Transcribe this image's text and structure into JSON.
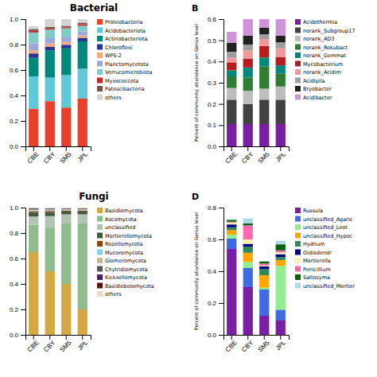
{
  "chart_data": [
    {
      "type": "bar",
      "stacked": true,
      "legend": "right",
      "title": "Bacterial",
      "categories": [
        "CBE",
        "CBY",
        "SM5",
        "JPL"
      ],
      "ylim": [
        0,
        1
      ],
      "yticks": [
        {
          "value": 0,
          "label": "0.0"
        },
        0.2,
        0.4,
        0.6,
        0.8,
        {
          "value": 1.0,
          "label": "1.0"
        }
      ],
      "series": [
        {
          "name": "Proteobacteria",
          "color": "#E8402A",
          "values": [
            0.295,
            0.355,
            0.305,
            0.375
          ]
        },
        {
          "name": "Acidobacteriota",
          "color": "#5ECAD8",
          "values": [
            0.255,
            0.185,
            0.255,
            0.235
          ]
        },
        {
          "name": "Actinobacteriota",
          "color": "#00897B",
          "values": [
            0.145,
            0.215,
            0.21,
            0.215
          ]
        },
        {
          "name": "Chloroflexi",
          "color": "#283593",
          "values": [
            0.035,
            0.028,
            0.028,
            0.028
          ]
        },
        {
          "name": "WPS-2",
          "color": "#F4A87C",
          "values": [
            0.025,
            0.025,
            0.022,
            0.018
          ]
        },
        {
          "name": "Planctomycetota",
          "color": "#9FA8DA",
          "values": [
            0.055,
            0.042,
            0.042,
            0.032
          ]
        },
        {
          "name": "Verrucomicrobiota",
          "color": "#80CBC4",
          "values": [
            0.085,
            0.068,
            0.065,
            0.045
          ]
        },
        {
          "name": "Myxococcota",
          "color": "#C62828",
          "values": [
            0.012,
            0.008,
            0.008,
            0.012
          ]
        },
        {
          "name": "Patescibacteria",
          "color": "#795548",
          "values": [
            0.015,
            0.012,
            0.012,
            0.012
          ]
        },
        {
          "name": "others",
          "color": "#D3D3D3",
          "values": [
            0.023,
            0.062,
            0.053,
            0.028
          ]
        }
      ]
    },
    {
      "type": "bar",
      "stacked": true,
      "legend": "right",
      "title": "B",
      "ylabel": "Percent of community abundance on Genus level",
      "categories": [
        "CBE",
        "CBY",
        "SM5",
        "JPL"
      ],
      "ylim": [
        0,
        0.6
      ],
      "yticks": [
        {
          "value": 0,
          "label": "0.0"
        },
        0.1,
        0.2,
        0.3,
        0.4,
        0.5,
        0.6
      ],
      "series": [
        {
          "name": "Acidothermia",
          "color": "#7B1FA2",
          "values": [
            0.105,
            0.105,
            0.105,
            0.105
          ]
        },
        {
          "name": "norank_Subgroup17",
          "color": "#424242",
          "values": [
            0.115,
            0.095,
            0.115,
            0.115
          ]
        },
        {
          "name": "norank_AD3",
          "color": "#BDBDBD",
          "values": [
            0.055,
            0.062,
            0.052,
            0.062
          ]
        },
        {
          "name": "norank_Rokubact",
          "color": "#2E7D32",
          "values": [
            0.055,
            0.062,
            0.105,
            0.062
          ]
        },
        {
          "name": "norank_Gemmat",
          "color": "#00897B",
          "values": [
            0.028,
            0.048,
            0.042,
            0.038
          ]
        },
        {
          "name": "Mycobacterium",
          "color": "#B71C1C",
          "values": [
            0.038,
            0.042,
            0.055,
            0.038
          ]
        },
        {
          "name": "norank_Acidim",
          "color": "#EF9A9A",
          "values": [
            0.022,
            0.038,
            0.032,
            0.042
          ]
        },
        {
          "name": "Acidipila",
          "color": "#9E9E9E",
          "values": [
            0.028,
            0.028,
            0.022,
            0.028
          ]
        },
        {
          "name": "Bryobacter",
          "color": "#212121",
          "values": [
            0.042,
            0.042,
            0.032,
            0.032
          ]
        },
        {
          "name": "Acidibacter",
          "color": "#CE93D8",
          "values": [
            0.052,
            0.078,
            0.04,
            0.078
          ]
        }
      ]
    },
    {
      "type": "bar",
      "stacked": true,
      "legend": "right",
      "title": "Fungi",
      "categories": [
        "CBE",
        "CBY",
        "SM5",
        "JPL"
      ],
      "ylim": [
        0,
        1
      ],
      "yticks": [
        {
          "value": 0,
          "label": "0.0"
        },
        0.2,
        0.4,
        0.6,
        0.8,
        {
          "value": 1.0,
          "label": "1.0"
        }
      ],
      "series": [
        {
          "name": "Basidiomycota",
          "color": "#D4A843",
          "values": [
            0.65,
            0.5,
            0.4,
            0.2
          ]
        },
        {
          "name": "Ascomycota",
          "color": "#8FBC8F",
          "values": [
            0.215,
            0.345,
            0.475,
            0.675
          ]
        },
        {
          "name": "unclassified",
          "color": "#B0C4B1",
          "values": [
            0.065,
            0.088,
            0.072,
            0.072
          ]
        },
        {
          "name": "Mortierellomycota",
          "color": "#3D5A3E",
          "values": [
            0.028,
            0.028,
            0.022,
            0.022
          ]
        },
        {
          "name": "Rozellomycota",
          "color": "#8B4513",
          "values": [
            0.012,
            0.012,
            0.008,
            0.008
          ]
        },
        {
          "name": "Mucoromycota",
          "color": "#87CEEB",
          "values": [
            0.008,
            0.008,
            0.006,
            0.006
          ]
        },
        {
          "name": "Glomeromycota",
          "color": "#C8B89A",
          "values": [
            0.006,
            0.005,
            0.004,
            0.004
          ]
        },
        {
          "name": "Chytridiomycota",
          "color": "#555555",
          "values": [
            0.005,
            0.004,
            0.003,
            0.003
          ]
        },
        {
          "name": "Kickxellomycota",
          "color": "#4A235A",
          "values": [
            0.004,
            0.003,
            0.003,
            0.003
          ]
        },
        {
          "name": "Basidiobolomycota",
          "color": "#5C1010",
          "values": [
            0.003,
            0.002,
            0.002,
            0.002
          ]
        },
        {
          "name": "others",
          "color": "#F0D9C0",
          "values": [
            0.004,
            0.005,
            0.005,
            0.005
          ]
        }
      ]
    },
    {
      "type": "bar",
      "stacked": true,
      "legend": "right",
      "title": "D",
      "ylabel": "Percent of community abundance on Genus level",
      "categories": [
        "CBE",
        "CBY",
        "SM5",
        "JPL"
      ],
      "ylim": [
        0,
        0.8
      ],
      "yticks": [
        {
          "value": 0,
          "label": "0.0"
        },
        0.2,
        0.4,
        0.6,
        0.8
      ],
      "series": [
        {
          "name": "Russula",
          "color": "#7B1FA2",
          "values": [
            0.54,
            0.3,
            0.12,
            0.09
          ]
        },
        {
          "name": "unclassified_Agaric",
          "color": "#4169E1",
          "values": [
            0.065,
            0.12,
            0.165,
            0.068
          ]
        },
        {
          "name": "unclassified_Leot",
          "color": "#90EE90",
          "values": [
            0.025,
            0.038,
            0.012,
            0.275
          ]
        },
        {
          "name": "unclassified_Hypoc",
          "color": "#FFA500",
          "values": [
            0.028,
            0.058,
            0.078,
            0.038
          ]
        },
        {
          "name": "Hydnum",
          "color": "#2E8B57",
          "values": [
            0.018,
            0.038,
            0.038,
            0.018
          ]
        },
        {
          "name": "Oidiodendr",
          "color": "#00008B",
          "values": [
            0.018,
            0.018,
            0.018,
            0.018
          ]
        },
        {
          "name": "Mortierella",
          "color": "#FFF0AA",
          "values": [
            0.012,
            0.028,
            0.005,
            0.012
          ]
        },
        {
          "name": "Penicillium",
          "color": "#FF69B4",
          "values": [
            0.005,
            0.088,
            0.012,
            0.012
          ]
        },
        {
          "name": "Saltozyma",
          "color": "#006400",
          "values": [
            0.012,
            0.012,
            0.012,
            0.038
          ]
        },
        {
          "name": "unclassified_Mortier",
          "color": "#ADD8E6",
          "values": [
            0.005,
            0.032,
            0.005,
            0.022
          ]
        }
      ]
    }
  ]
}
